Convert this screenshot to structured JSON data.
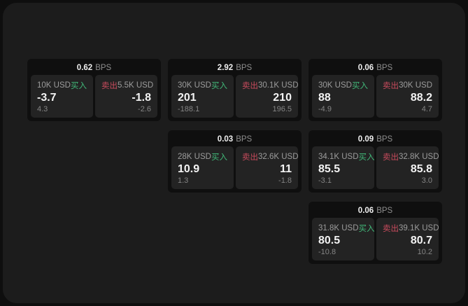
{
  "colors": {
    "buy_green": "#41b979",
    "sell_red": "#c94b5d"
  },
  "labels": {
    "bps_unit": "BPS"
  },
  "cards": [
    {
      "bps": "0.62",
      "buy": {
        "amount": "10K USD",
        "action": "买入",
        "value": "-3.7",
        "change": "4.3"
      },
      "sell": {
        "action": "卖出",
        "amount": "5.5K USD",
        "value": "-1.8",
        "change": "-2.6"
      }
    },
    {
      "bps": "2.92",
      "buy": {
        "amount": "30K USD",
        "action": "买入",
        "value": "201",
        "change": "-188.1"
      },
      "sell": {
        "action": "卖出",
        "amount": "30.1K USD",
        "value": "210",
        "change": "196.5"
      }
    },
    {
      "bps": "0.06",
      "buy": {
        "amount": "30K USD",
        "action": "买入",
        "value": "88",
        "change": "-4.9"
      },
      "sell": {
        "action": "卖出",
        "amount": "30K USD",
        "value": "88.2",
        "change": "4.7"
      }
    },
    {
      "bps": "0.03",
      "buy": {
        "amount": "28K USD",
        "action": "买入",
        "value": "10.9",
        "change": "1.3"
      },
      "sell": {
        "action": "卖出",
        "amount": "32.6K USD",
        "value": "11",
        "change": "-1.8"
      }
    },
    {
      "bps": "0.09",
      "buy": {
        "amount": "34.1K USD",
        "action": "买入",
        "value": "85.5",
        "change": "-3.1"
      },
      "sell": {
        "action": "卖出",
        "amount": "32.8K USD",
        "value": "85.8",
        "change": "3.0"
      }
    },
    {
      "bps": "0.06",
      "buy": {
        "amount": "31.8K USD",
        "action": "买入",
        "value": "80.5",
        "change": "-10.8"
      },
      "sell": {
        "action": "卖出",
        "amount": "39.1K USD",
        "value": "80.7",
        "change": "10.2"
      }
    }
  ]
}
